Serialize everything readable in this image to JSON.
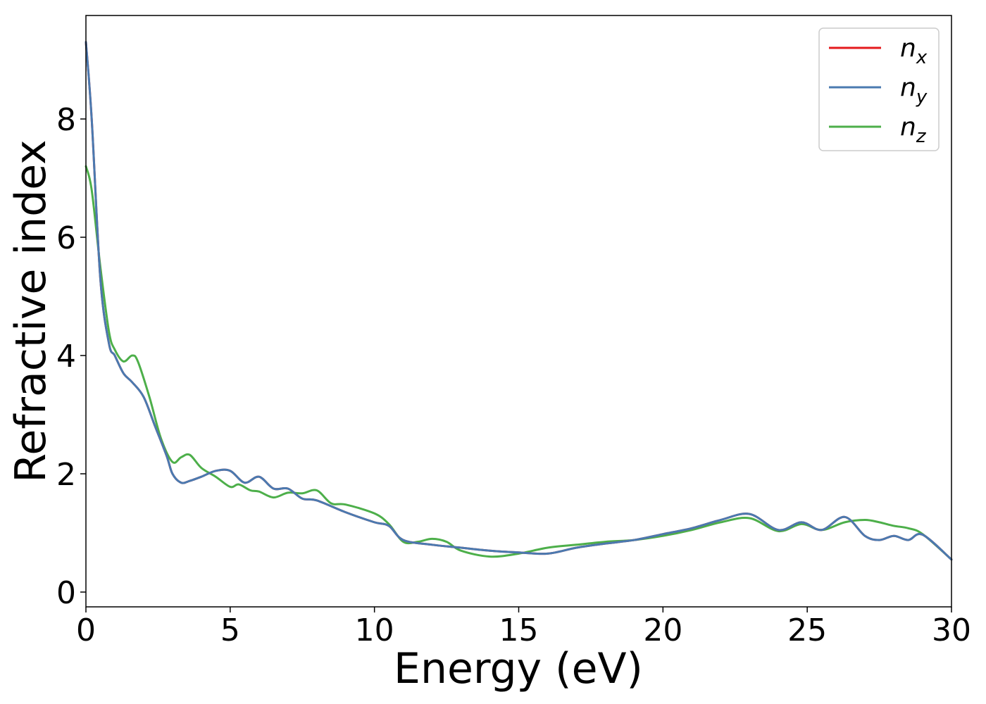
{
  "chart_data": {
    "type": "line",
    "title": "",
    "xlabel": "Energy (eV)",
    "ylabel": "Refractive index",
    "xlim": [
      0,
      30
    ],
    "ylim": [
      -0.25,
      9.75
    ],
    "xticks": [
      0,
      5,
      10,
      15,
      20,
      25,
      30
    ],
    "yticks": [
      0,
      2,
      4,
      6,
      8
    ],
    "grid": false,
    "legend_position": "top-right",
    "series": [
      {
        "name": "n",
        "subscript": "x",
        "color": "#e41a1c",
        "x": [
          0,
          0.2,
          0.5,
          0.8,
          1.0,
          1.3,
          1.6,
          2.0,
          2.4,
          2.8,
          3.0,
          3.3,
          3.6,
          4.0,
          4.5,
          5.0,
          5.5,
          6.0,
          6.5,
          7.0,
          7.5,
          8.0,
          9.0,
          10.0,
          10.5,
          11.0,
          12.0,
          13.0,
          14.0,
          15.0,
          16.0,
          17.0,
          18.0,
          19.0,
          20.0,
          21.0,
          22.0,
          23.0,
          24.0,
          24.8,
          25.5,
          26.3,
          27.0,
          27.5,
          28.0,
          28.5,
          29.0,
          30.0
        ],
        "y": [
          9.3,
          8.0,
          5.3,
          4.2,
          4.0,
          3.7,
          3.55,
          3.3,
          2.8,
          2.3,
          2.0,
          1.85,
          1.88,
          1.95,
          2.05,
          2.05,
          1.85,
          1.95,
          1.75,
          1.75,
          1.58,
          1.55,
          1.35,
          1.18,
          1.12,
          0.88,
          0.8,
          0.75,
          0.7,
          0.67,
          0.65,
          0.75,
          0.82,
          0.88,
          0.98,
          1.08,
          1.22,
          1.32,
          1.05,
          1.18,
          1.05,
          1.27,
          0.95,
          0.88,
          0.95,
          0.88,
          0.97,
          0.55
        ]
      },
      {
        "name": "n",
        "subscript": "y",
        "color": "#4a7ab0",
        "x": [
          0,
          0.2,
          0.5,
          0.8,
          1.0,
          1.3,
          1.6,
          2.0,
          2.4,
          2.8,
          3.0,
          3.3,
          3.6,
          4.0,
          4.5,
          5.0,
          5.5,
          6.0,
          6.5,
          7.0,
          7.5,
          8.0,
          9.0,
          10.0,
          10.5,
          11.0,
          12.0,
          13.0,
          14.0,
          15.0,
          16.0,
          17.0,
          18.0,
          19.0,
          20.0,
          21.0,
          22.0,
          23.0,
          24.0,
          24.8,
          25.5,
          26.3,
          27.0,
          27.5,
          28.0,
          28.5,
          29.0,
          30.0
        ],
        "y": [
          9.3,
          8.0,
          5.3,
          4.2,
          4.0,
          3.7,
          3.55,
          3.3,
          2.8,
          2.3,
          2.0,
          1.85,
          1.88,
          1.95,
          2.05,
          2.05,
          1.85,
          1.95,
          1.75,
          1.75,
          1.58,
          1.55,
          1.35,
          1.18,
          1.12,
          0.88,
          0.8,
          0.75,
          0.7,
          0.67,
          0.65,
          0.75,
          0.82,
          0.88,
          0.98,
          1.08,
          1.22,
          1.32,
          1.05,
          1.18,
          1.05,
          1.27,
          0.95,
          0.88,
          0.95,
          0.88,
          0.97,
          0.55
        ]
      },
      {
        "name": "n",
        "subscript": "z",
        "color": "#4daf4a",
        "x": [
          0,
          0.2,
          0.5,
          0.8,
          1.0,
          1.3,
          1.6,
          1.8,
          2.2,
          2.6,
          3.0,
          3.3,
          3.6,
          4.0,
          4.5,
          5.0,
          5.3,
          5.7,
          6.0,
          6.5,
          7.0,
          7.5,
          8.0,
          8.5,
          9.0,
          10.0,
          10.5,
          11.0,
          11.5,
          12.0,
          12.5,
          13.0,
          14.0,
          15.0,
          16.0,
          17.0,
          18.0,
          19.0,
          20.0,
          21.0,
          22.0,
          23.0,
          24.0,
          24.8,
          25.5,
          26.3,
          27.0,
          27.5,
          28.0,
          28.5,
          29.0,
          30.0
        ],
        "y": [
          7.2,
          6.8,
          5.5,
          4.4,
          4.1,
          3.9,
          4.0,
          3.9,
          3.3,
          2.6,
          2.2,
          2.28,
          2.32,
          2.1,
          1.95,
          1.78,
          1.82,
          1.72,
          1.7,
          1.6,
          1.68,
          1.67,
          1.72,
          1.5,
          1.48,
          1.33,
          1.15,
          0.85,
          0.85,
          0.9,
          0.85,
          0.7,
          0.6,
          0.65,
          0.75,
          0.8,
          0.85,
          0.88,
          0.95,
          1.05,
          1.18,
          1.25,
          1.03,
          1.15,
          1.05,
          1.18,
          1.22,
          1.18,
          1.12,
          1.08,
          0.98,
          0.55
        ]
      }
    ]
  }
}
